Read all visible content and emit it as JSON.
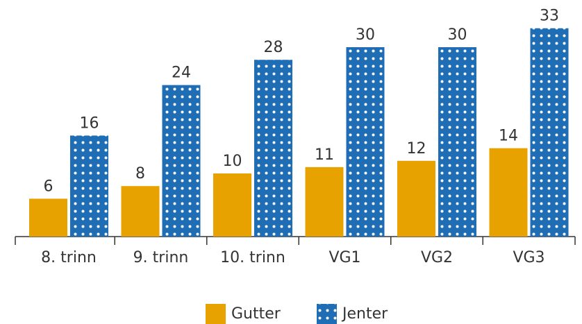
{
  "chart_data": {
    "type": "bar",
    "categories": [
      "8. trinn",
      "9. trinn",
      "10. trinn",
      "VG1",
      "VG2",
      "VG3"
    ],
    "series": [
      {
        "name": "Gutter",
        "color": "#e8a200",
        "values": [
          6,
          8,
          10,
          11,
          12,
          14
        ]
      },
      {
        "name": "Jenter",
        "color": "#1f6db5",
        "pattern": "dots",
        "values": [
          16,
          24,
          28,
          30,
          30,
          33
        ]
      }
    ],
    "legend": "bottom"
  }
}
